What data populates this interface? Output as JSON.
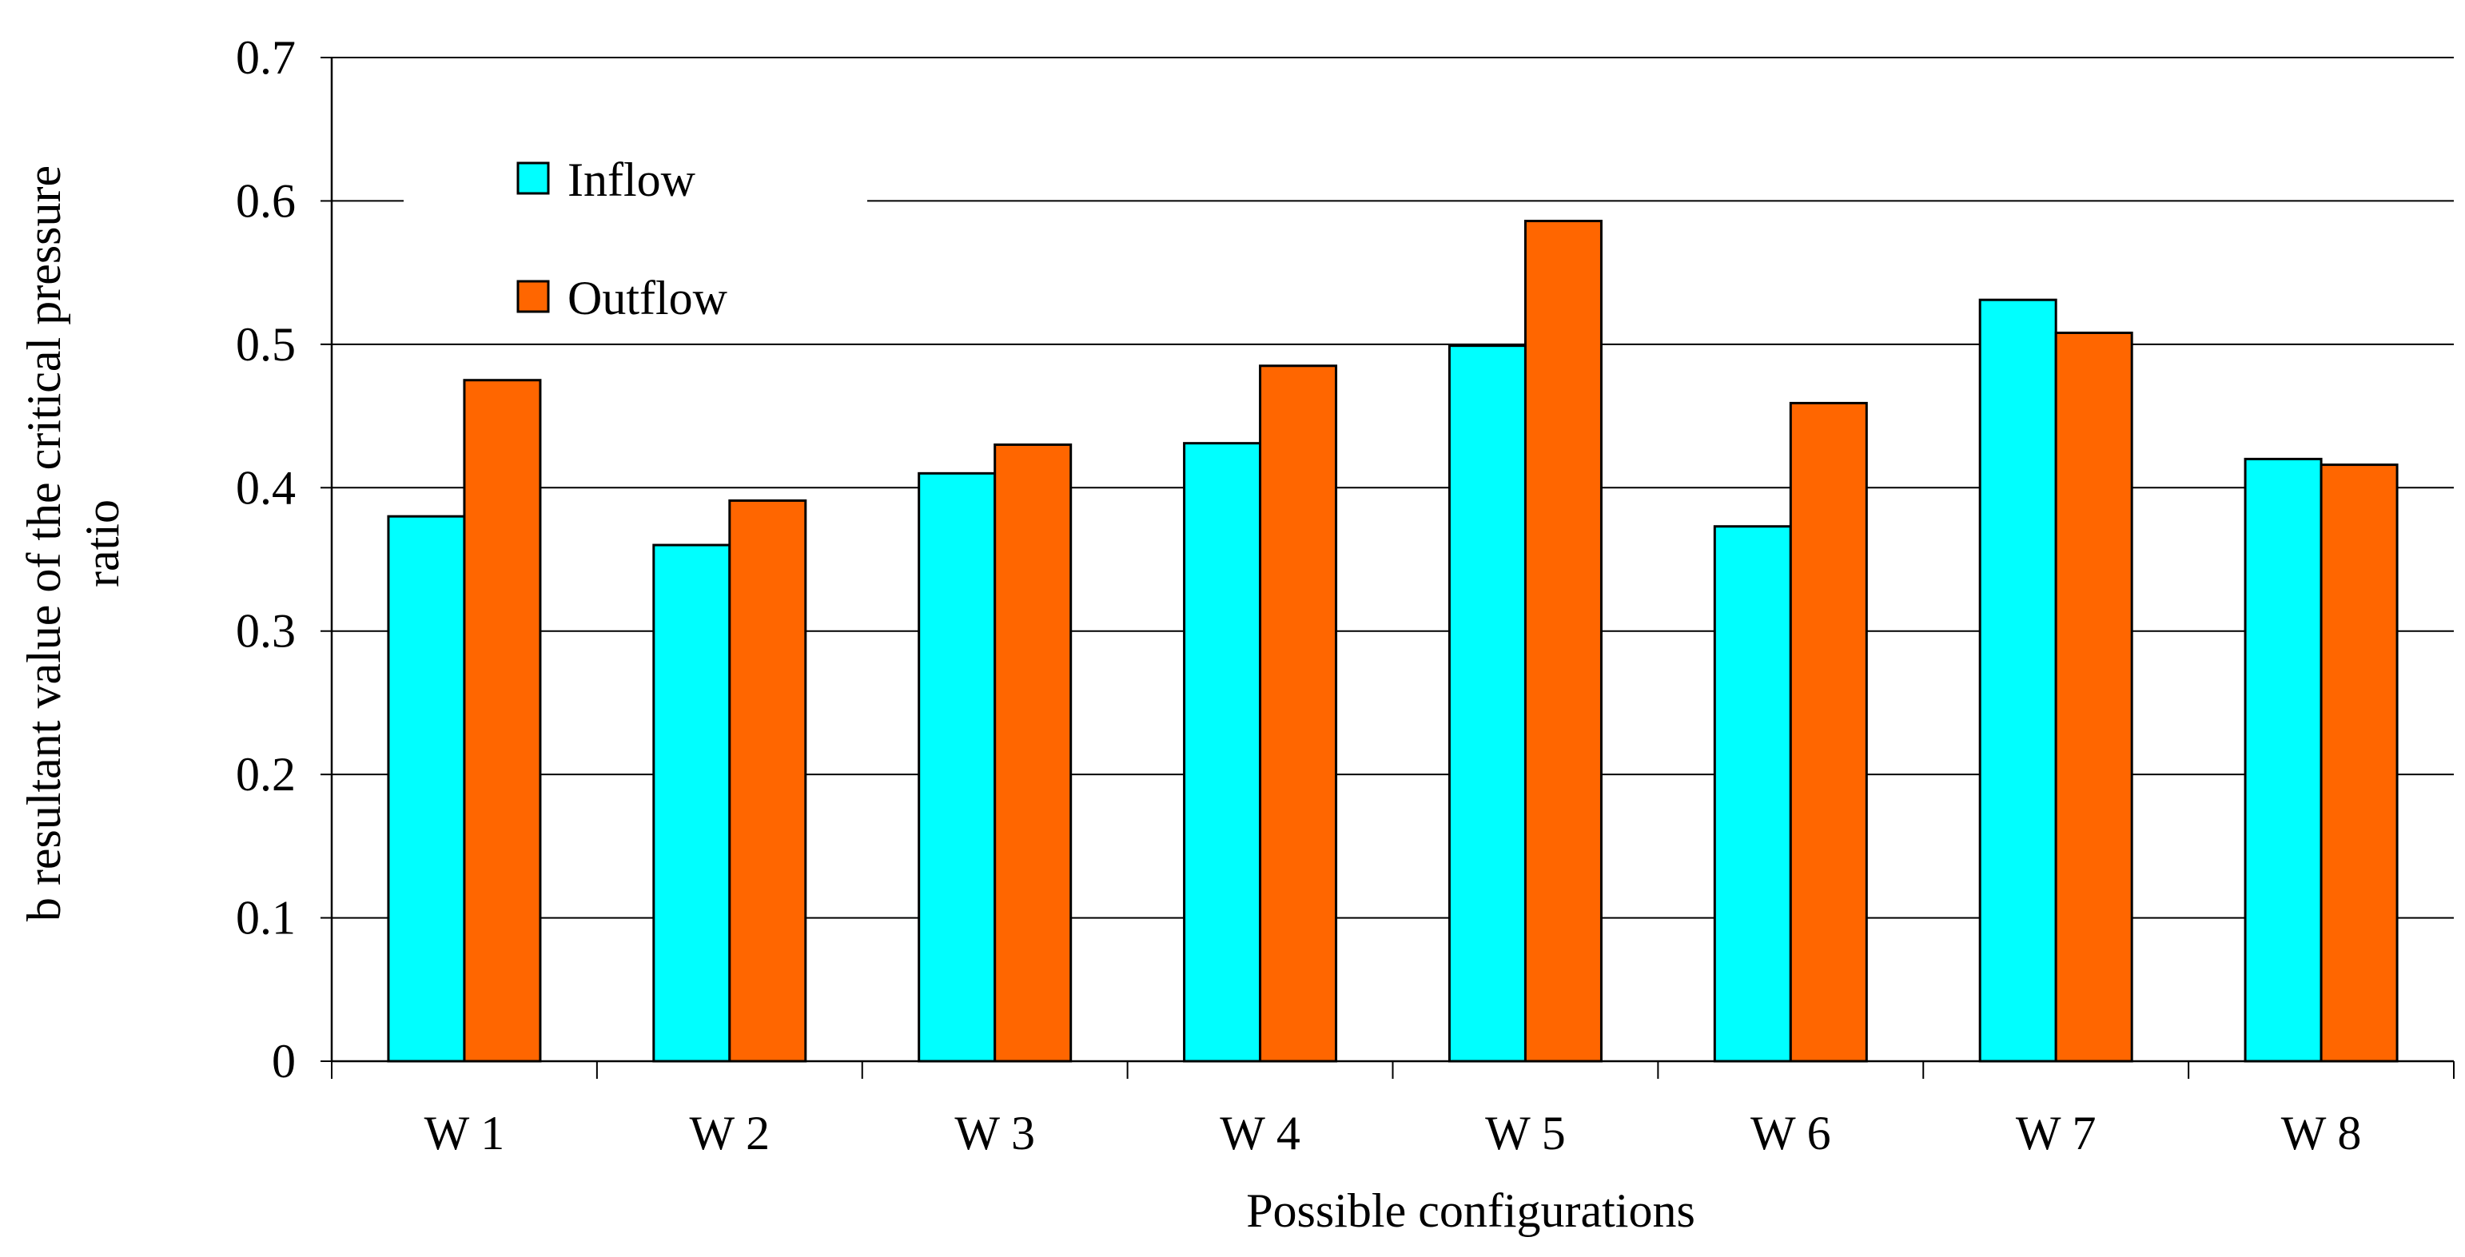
{
  "chart_data": {
    "type": "bar",
    "title": "",
    "xlabel": "Possible configurations",
    "ylabel_lines": [
      "b resultant value of the critical pressure",
      "ratio"
    ],
    "categories": [
      "W 1",
      "W 2",
      "W 3",
      "W 4",
      "W 5",
      "W 6",
      "W 7",
      "W 8"
    ],
    "series": [
      {
        "name": "Inflow",
        "color": "#00FFFF",
        "values": [
          0.38,
          0.36,
          0.41,
          0.431,
          0.499,
          0.373,
          0.531,
          0.42
        ]
      },
      {
        "name": "Outflow",
        "color": "#FF6600",
        "values": [
          0.475,
          0.391,
          0.43,
          0.485,
          0.586,
          0.459,
          0.508,
          0.416
        ]
      }
    ],
    "ylim": [
      0,
      0.7
    ],
    "yticks": [
      "0",
      "0.1",
      "0.2",
      "0.3",
      "0.4",
      "0.5",
      "0.6",
      "0.7"
    ],
    "grid": true,
    "legend_position": "top-left"
  }
}
